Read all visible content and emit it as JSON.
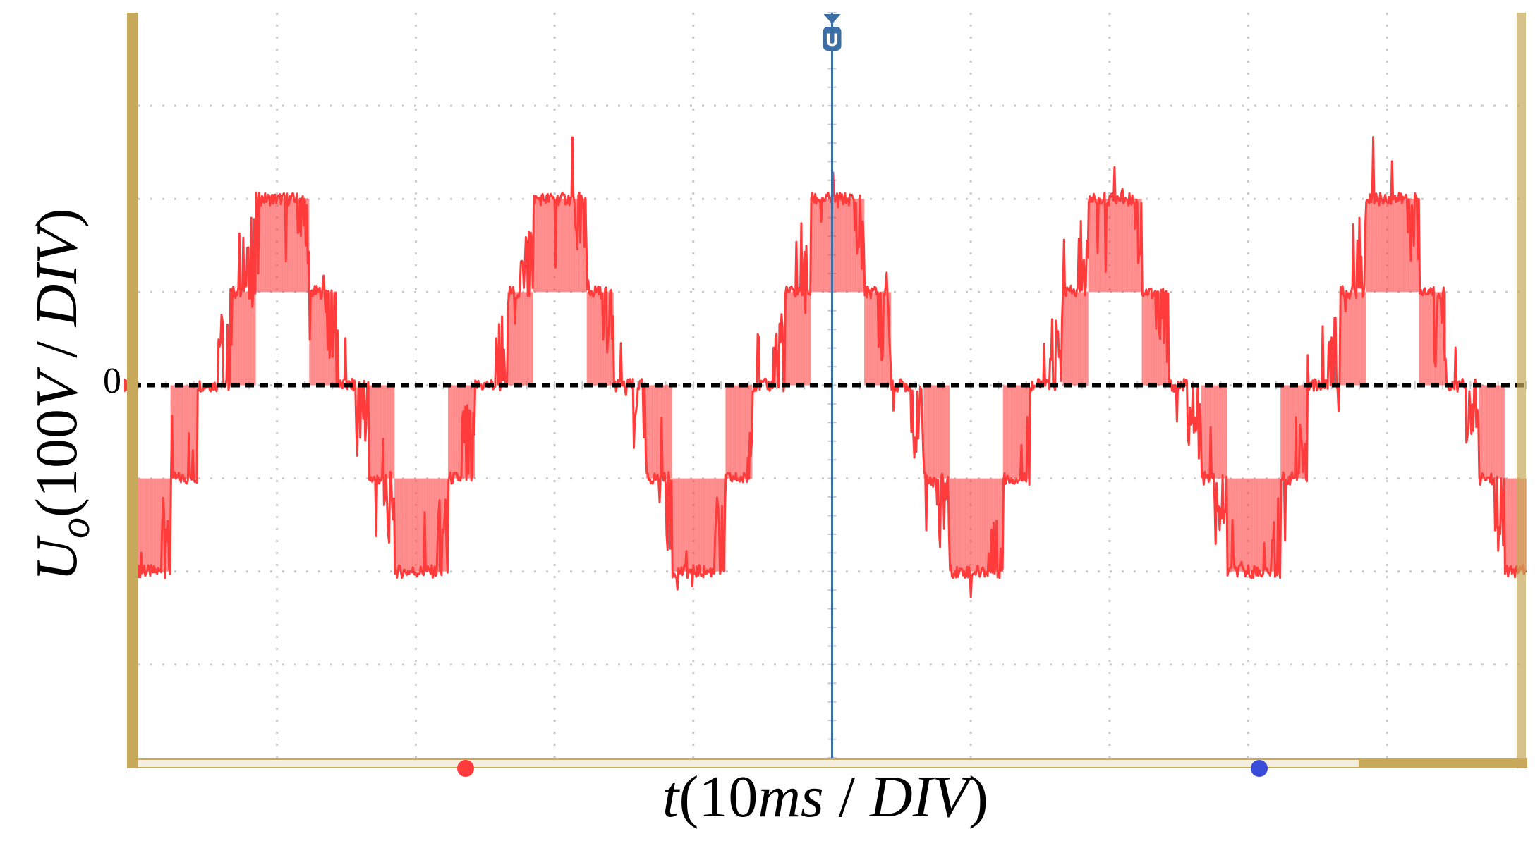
{
  "chart_data": {
    "type": "line",
    "title": "",
    "xlabel": {
      "prefix": "t",
      "unit": "10",
      "unit_sub": "ms",
      "sep": " / ",
      "div": "DIV",
      "close": ")"
    },
    "ylabel": {
      "main": "U",
      "sub": "o",
      "unit": "(100",
      "unit_v": "V",
      "sep": " / ",
      "div": "DIV",
      "close": ")"
    },
    "zero_label": "0",
    "x_unit": "ms",
    "y_unit": "V",
    "x_per_div_ms": 10,
    "y_per_div_V": 100,
    "xlim_ms": [
      0,
      100
    ],
    "ylim_V": [
      -400,
      400
    ],
    "grid": true,
    "grid_divisions": {
      "x": 10,
      "y": 8
    },
    "reference_line": {
      "y_V": 0,
      "style": "dashed"
    },
    "trigger_marker_x_ms": 50,
    "series": [
      {
        "name": "Uo",
        "color": "#ff3b3b",
        "period_ms": 20,
        "phase_ms": 5.4,
        "levels_V": [
          0,
          100,
          200
        ],
        "peak_V": 200,
        "note": "stepped five-level output voltage waveform with PWM switching fill"
      }
    ],
    "colors": {
      "frame": "#c8a85a",
      "grid": "#c9c9c9",
      "trace": "#ff3b3b",
      "cursor": "#3a6ea5",
      "zero_line": "#000000"
    }
  }
}
